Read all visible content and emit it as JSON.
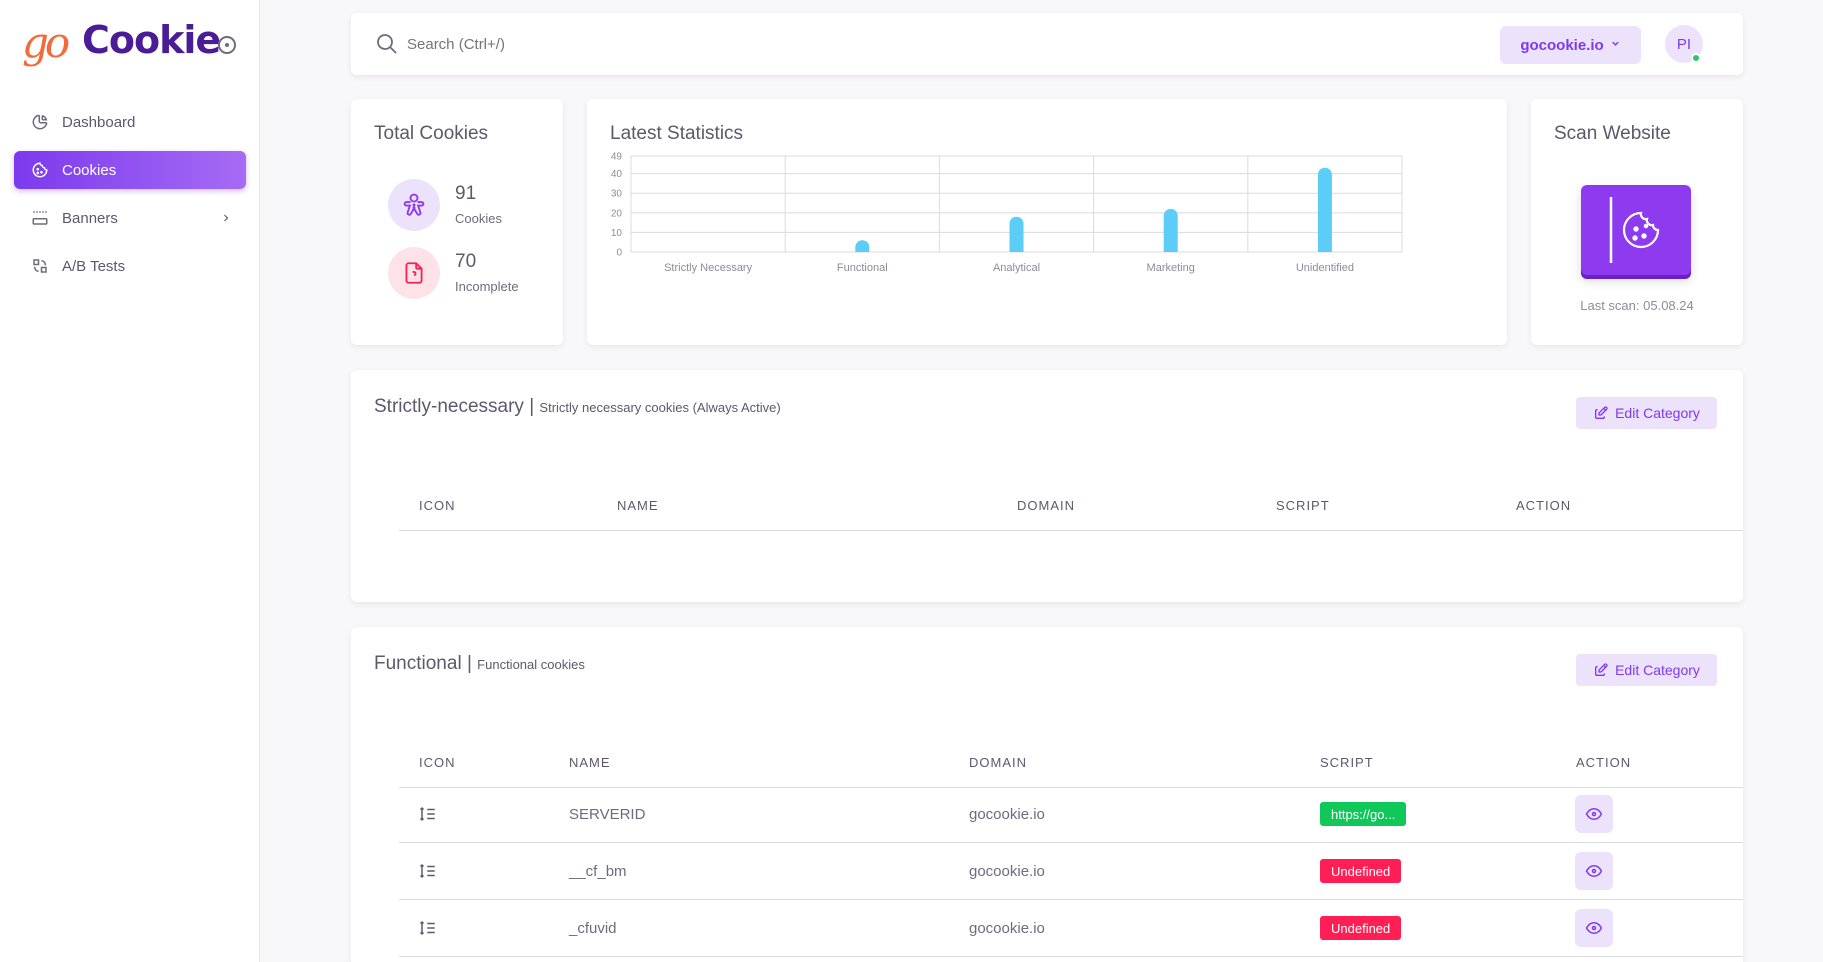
{
  "brand": {
    "go": "go",
    "name": "Cookie"
  },
  "sidebar": {
    "items": [
      {
        "label": "Dashboard",
        "icon": "chart-pie-icon",
        "active": false
      },
      {
        "label": "Cookies",
        "icon": "cookie-icon",
        "active": true
      },
      {
        "label": "Banners",
        "icon": "banner-icon",
        "active": false,
        "has_submenu": true
      },
      {
        "label": "A/B Tests",
        "icon": "ab-test-icon",
        "active": false
      }
    ]
  },
  "topbar": {
    "search_placeholder": "Search (Ctrl+/)",
    "domain_selector": "gocookie.io",
    "avatar_initials": "PI",
    "online_color": "#28c76f"
  },
  "total_cookies": {
    "title": "Total Cookies",
    "cookies_value": "91",
    "cookies_label": "Cookies",
    "incomplete_value": "70",
    "incomplete_label": "Incomplete"
  },
  "scan": {
    "title": "Scan Website",
    "last_scan": "Last scan: 05.08.24"
  },
  "chart_data": {
    "type": "bar",
    "title": "Latest Statistics",
    "categories": [
      "Strictly Necessary",
      "Functional",
      "Analytical",
      "Marketing",
      "Unidentified"
    ],
    "values": [
      0,
      6,
      18,
      22,
      43
    ],
    "yticks": [
      0,
      10,
      20,
      30,
      40,
      49
    ],
    "ylim": [
      0,
      49
    ],
    "grid": true,
    "bar_color": "#5bcdf7"
  },
  "sections": [
    {
      "title": "Strictly-necessary",
      "subtitle": "Strictly necessary cookies (Always Active)",
      "edit_label": "Edit Category",
      "columns": [
        "ICON",
        "NAME",
        "DOMAIN",
        "SCRIPT",
        "ACTION"
      ],
      "rows": []
    },
    {
      "title": "Functional",
      "subtitle": "Functional cookies",
      "edit_label": "Edit Category",
      "columns": [
        "ICON",
        "NAME",
        "DOMAIN",
        "SCRIPT",
        "ACTION"
      ],
      "rows": [
        {
          "name": "SERVERID",
          "domain": "gocookie.io",
          "script": "https://go...",
          "script_status": "green"
        },
        {
          "name": "__cf_bm",
          "domain": "gocookie.io",
          "script": "Undefined",
          "script_status": "red"
        },
        {
          "name": "_cfuvid",
          "domain": "gocookie.io",
          "script": "Undefined",
          "script_status": "red"
        }
      ]
    }
  ],
  "colors": {
    "accent": "#7c3aed",
    "accent_light": "#ede2fb",
    "success": "#10c85a",
    "danger": "#ff1f55"
  }
}
